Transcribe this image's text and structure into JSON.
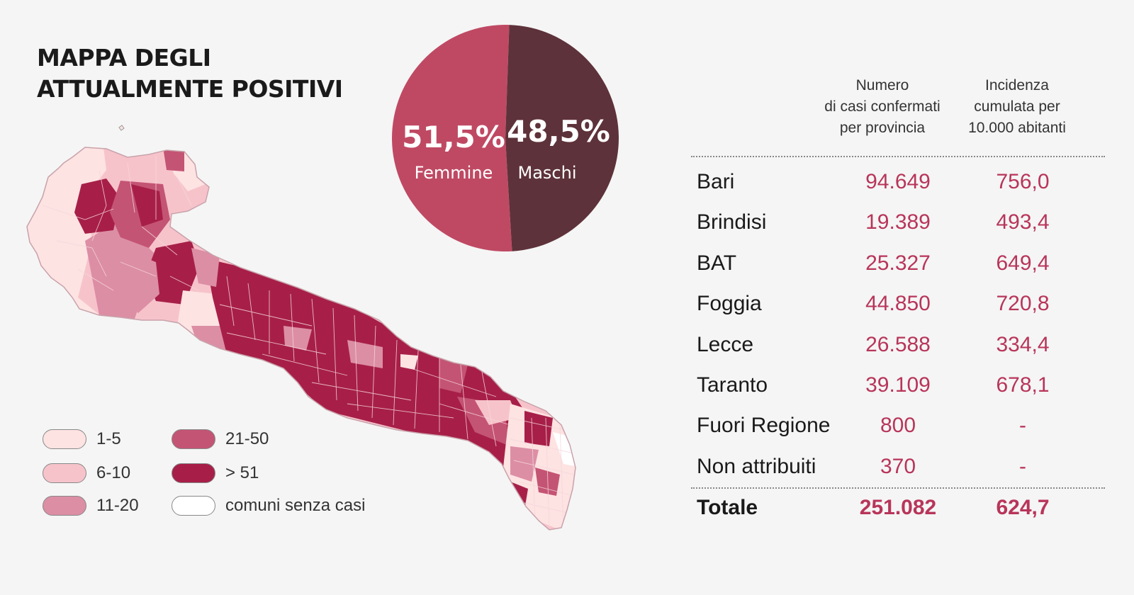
{
  "title": {
    "line1": "MAPPA DEGLI",
    "line2": "ATTUALMENTE POSITIVI"
  },
  "colors": {
    "c1_5": "#fde3e2",
    "c6_10": "#f7c3cb",
    "c11_20": "#dc8ea5",
    "c21_50": "#c45474",
    "c51": "#a71f48",
    "none": "#ffffff",
    "femmine": "#bf4963",
    "maschi": "#5e323a",
    "accent": "#b8355a"
  },
  "legend": [
    {
      "label": "1-5",
      "color_key": "c1_5"
    },
    {
      "label": "6-10",
      "color_key": "c6_10"
    },
    {
      "label": "11-20",
      "color_key": "c11_20"
    },
    {
      "label": "21-50",
      "color_key": "c21_50"
    },
    {
      "label": "> 51",
      "color_key": "c51"
    },
    {
      "label": "comuni senza casi",
      "color_key": "none"
    }
  ],
  "chart_data": [
    {
      "type": "pie",
      "slices": [
        {
          "label": "Femmine",
          "value": 51.5,
          "display": "51,5%"
        },
        {
          "label": "Maschi",
          "value": 48.5,
          "display": "48,5%"
        }
      ]
    },
    {
      "type": "table",
      "columns": [
        "Numero di casi confermati per provincia",
        "Incidenza cumulata per 10.000 abitanti"
      ],
      "rows": [
        {
          "name": "Bari",
          "cases": "94.649",
          "incidence": "756,0"
        },
        {
          "name": "Brindisi",
          "cases": "19.389",
          "incidence": "493,4"
        },
        {
          "name": "BAT",
          "cases": "25.327",
          "incidence": "649,4"
        },
        {
          "name": "Foggia",
          "cases": "44.850",
          "incidence": "720,8"
        },
        {
          "name": "Lecce",
          "cases": "26.588",
          "incidence": "334,4"
        },
        {
          "name": "Taranto",
          "cases": "39.109",
          "incidence": "678,1"
        },
        {
          "name": "Fuori Regione",
          "cases": "800",
          "incidence": "-"
        },
        {
          "name": "Non attribuiti",
          "cases": "370",
          "incidence": "-"
        }
      ],
      "total": {
        "name": "Totale",
        "cases": "251.082",
        "incidence": "624,7"
      }
    }
  ],
  "table_header": {
    "col1": [
      "Numero",
      "di casi confermati",
      "per provincia"
    ],
    "col2": [
      "Incidenza",
      "cumulata per",
      "10.000 abitanti"
    ]
  }
}
